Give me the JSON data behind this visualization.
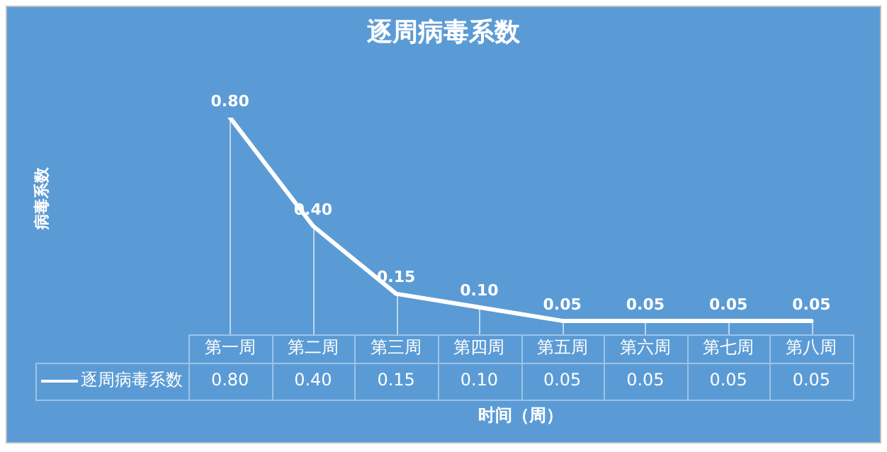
{
  "chart_data": {
    "type": "line",
    "title": "逐周病毒系数",
    "xlabel": "时间（周）",
    "annotations": [
      "病毒系数"
    ],
    "categories": [
      "第一周",
      "第二周",
      "第三周",
      "第四周",
      "第五周",
      "第六周",
      "第七周",
      "第八周"
    ],
    "series": [
      {
        "name": "逐周病毒系数",
        "color": "#ffffff",
        "values": [
          0.8,
          0.4,
          0.15,
          0.1,
          0.05,
          0.05,
          0.05,
          0.05
        ],
        "value_labels": [
          "0.80",
          "0.40",
          "0.15",
          "0.10",
          "0.05",
          "0.05",
          "0.05",
          "0.05"
        ]
      }
    ],
    "line_style": "solid",
    "marker": "none"
  }
}
